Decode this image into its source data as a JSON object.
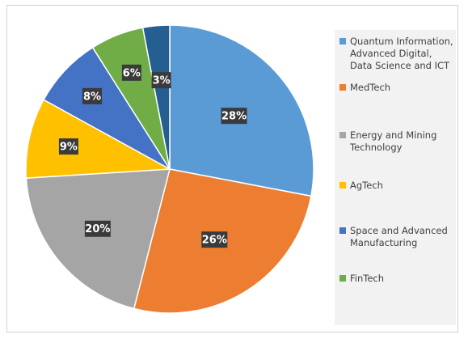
{
  "chart_data": {
    "type": "pie",
    "slices": [
      {
        "label": "Quantum Information, Advanced Digital, Data Science and ICT",
        "value": 28,
        "value_label": "28%",
        "color": "#5b9bd5"
      },
      {
        "label": "MedTech",
        "value": 26,
        "value_label": "26%",
        "color": "#ed7d31"
      },
      {
        "label": "Energy and Mining Technology",
        "value": 20,
        "value_label": "20%",
        "color": "#a5a5a5"
      },
      {
        "label": "AgTech",
        "value": 9,
        "value_label": "9%",
        "color": "#ffc000"
      },
      {
        "label": "Space and Advanced Manufacturing",
        "value": 8,
        "value_label": "8%",
        "color": "#4472c4"
      },
      {
        "label": "FinTech",
        "value": 6,
        "value_label": "6%",
        "color": "#70ad47"
      },
      {
        "label": "",
        "value": 3,
        "value_label": "3%",
        "color": "#255e91"
      }
    ],
    "legend_position": "right",
    "data_label_style": "dark boxes with white text"
  }
}
